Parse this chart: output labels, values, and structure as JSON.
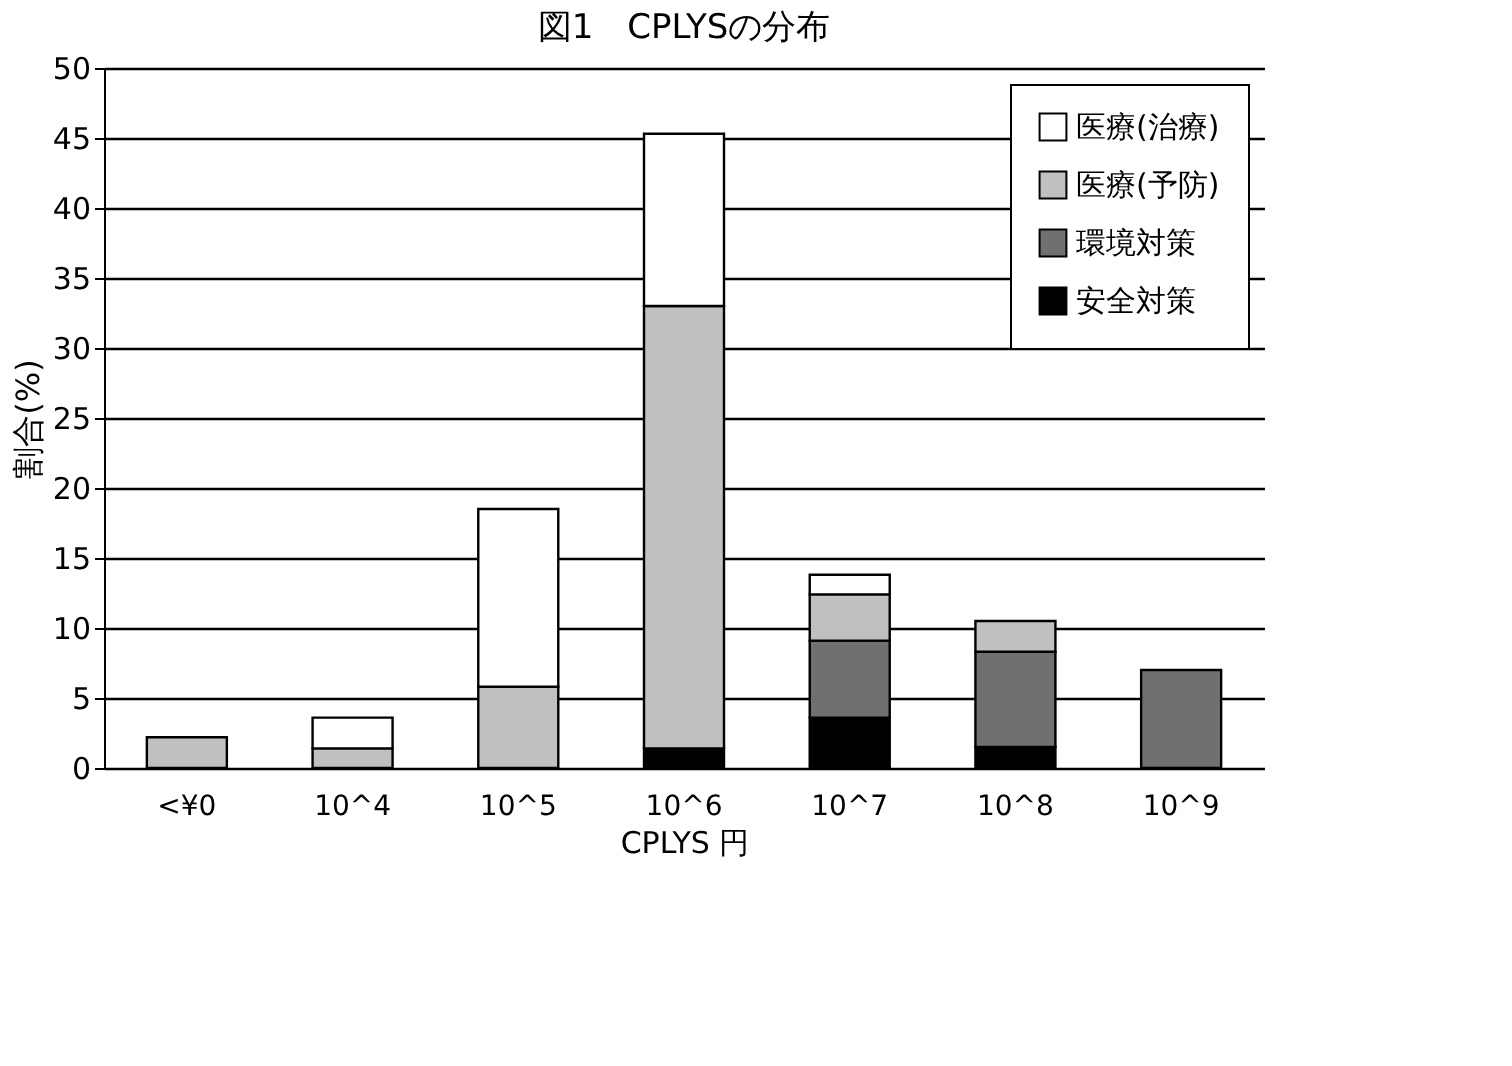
{
  "chart_data": {
    "type": "bar",
    "title": "図1　CPLYSの分布",
    "xlabel": "CPLYS 円",
    "ylabel": "割合(%)",
    "categories": [
      "<¥0",
      "10^4",
      "10^5",
      "10^6",
      "10^7",
      "10^8",
      "10^9"
    ],
    "stacked": true,
    "series": [
      {
        "name": "安全対策",
        "color": "#000000",
        "values": [
          null,
          null,
          null,
          1.4,
          3.6,
          1.5,
          null
        ]
      },
      {
        "name": "環境対策",
        "color": "#707070",
        "values": [
          null,
          null,
          null,
          null,
          5.5,
          6.8,
          7.0
        ]
      },
      {
        "name": "医療(予防)",
        "color": "#c0c0c0",
        "values": [
          2.2,
          1.4,
          5.8,
          31.6,
          3.3,
          2.2,
          null
        ]
      },
      {
        "name": "医療(治療)",
        "color": "#ffffff",
        "values": [
          null,
          2.2,
          12.7,
          12.3,
          1.4,
          null,
          null
        ]
      }
    ],
    "ylim": [
      0,
      50
    ],
    "yticks": [
      0,
      5,
      10,
      15,
      20,
      25,
      30,
      35,
      40,
      45,
      50
    ],
    "grid": "y",
    "legend": "top right"
  }
}
